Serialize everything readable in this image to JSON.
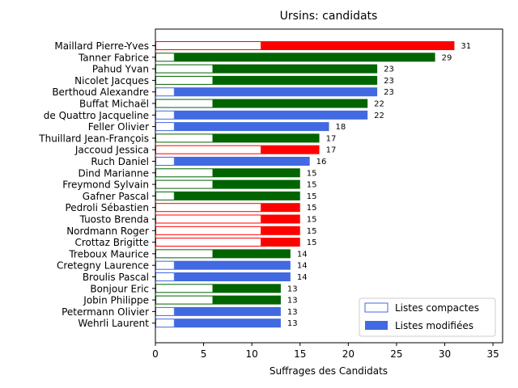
{
  "chart_data": {
    "type": "bar",
    "orientation": "horizontal",
    "title": "Ursins: candidats",
    "xlabel": "Suffrages des Candidats",
    "ylabel": "",
    "xlim": [
      0,
      36
    ],
    "xticks": [
      0,
      5,
      10,
      15,
      20,
      25,
      30,
      35
    ],
    "grid": false,
    "legend_position": "bottom-right",
    "colors": {
      "red": "#ff0000",
      "green": "#006400",
      "blue": "#4169e1"
    },
    "legend": [
      {
        "label": "Listes compactes",
        "style": "outline",
        "color": "#4169e1"
      },
      {
        "label": "Listes modifiées",
        "style": "filled",
        "color": "#4169e1"
      }
    ],
    "candidates": [
      {
        "name": "Maillard Pierre-Yves",
        "total": 31,
        "compact": 11,
        "color": "red"
      },
      {
        "name": "Tanner Fabrice",
        "total": 29,
        "compact": 2,
        "color": "green"
      },
      {
        "name": "Pahud Yvan",
        "total": 23,
        "compact": 6,
        "color": "green"
      },
      {
        "name": "Nicolet Jacques",
        "total": 23,
        "compact": 6,
        "color": "green"
      },
      {
        "name": "Berthoud Alexandre",
        "total": 23,
        "compact": 2,
        "color": "blue"
      },
      {
        "name": "Buffat Michaël",
        "total": 22,
        "compact": 6,
        "color": "green"
      },
      {
        "name": "de Quattro Jacqueline",
        "total": 22,
        "compact": 2,
        "color": "blue"
      },
      {
        "name": "Feller Olivier",
        "total": 18,
        "compact": 2,
        "color": "blue"
      },
      {
        "name": "Thuillard Jean-François",
        "total": 17,
        "compact": 6,
        "color": "green"
      },
      {
        "name": "Jaccoud Jessica",
        "total": 17,
        "compact": 11,
        "color": "red"
      },
      {
        "name": "Ruch Daniel",
        "total": 16,
        "compact": 2,
        "color": "blue"
      },
      {
        "name": "Dind Marianne",
        "total": 15,
        "compact": 6,
        "color": "green"
      },
      {
        "name": "Freymond Sylvain",
        "total": 15,
        "compact": 6,
        "color": "green"
      },
      {
        "name": "Gafner Pascal",
        "total": 15,
        "compact": 2,
        "color": "green"
      },
      {
        "name": "Pedroli Sébastien",
        "total": 15,
        "compact": 11,
        "color": "red"
      },
      {
        "name": "Tuosto Brenda",
        "total": 15,
        "compact": 11,
        "color": "red"
      },
      {
        "name": "Nordmann Roger",
        "total": 15,
        "compact": 11,
        "color": "red"
      },
      {
        "name": "Crottaz Brigitte",
        "total": 15,
        "compact": 11,
        "color": "red"
      },
      {
        "name": "Treboux Maurice",
        "total": 14,
        "compact": 6,
        "color": "green"
      },
      {
        "name": "Cretegny Laurence",
        "total": 14,
        "compact": 2,
        "color": "blue"
      },
      {
        "name": "Broulis Pascal",
        "total": 14,
        "compact": 2,
        "color": "blue"
      },
      {
        "name": "Bonjour Eric",
        "total": 13,
        "compact": 6,
        "color": "green"
      },
      {
        "name": "Jobin Philippe",
        "total": 13,
        "compact": 6,
        "color": "green"
      },
      {
        "name": "Petermann Olivier",
        "total": 13,
        "compact": 2,
        "color": "blue"
      },
      {
        "name": "Wehrli Laurent",
        "total": 13,
        "compact": 2,
        "color": "blue"
      }
    ]
  }
}
